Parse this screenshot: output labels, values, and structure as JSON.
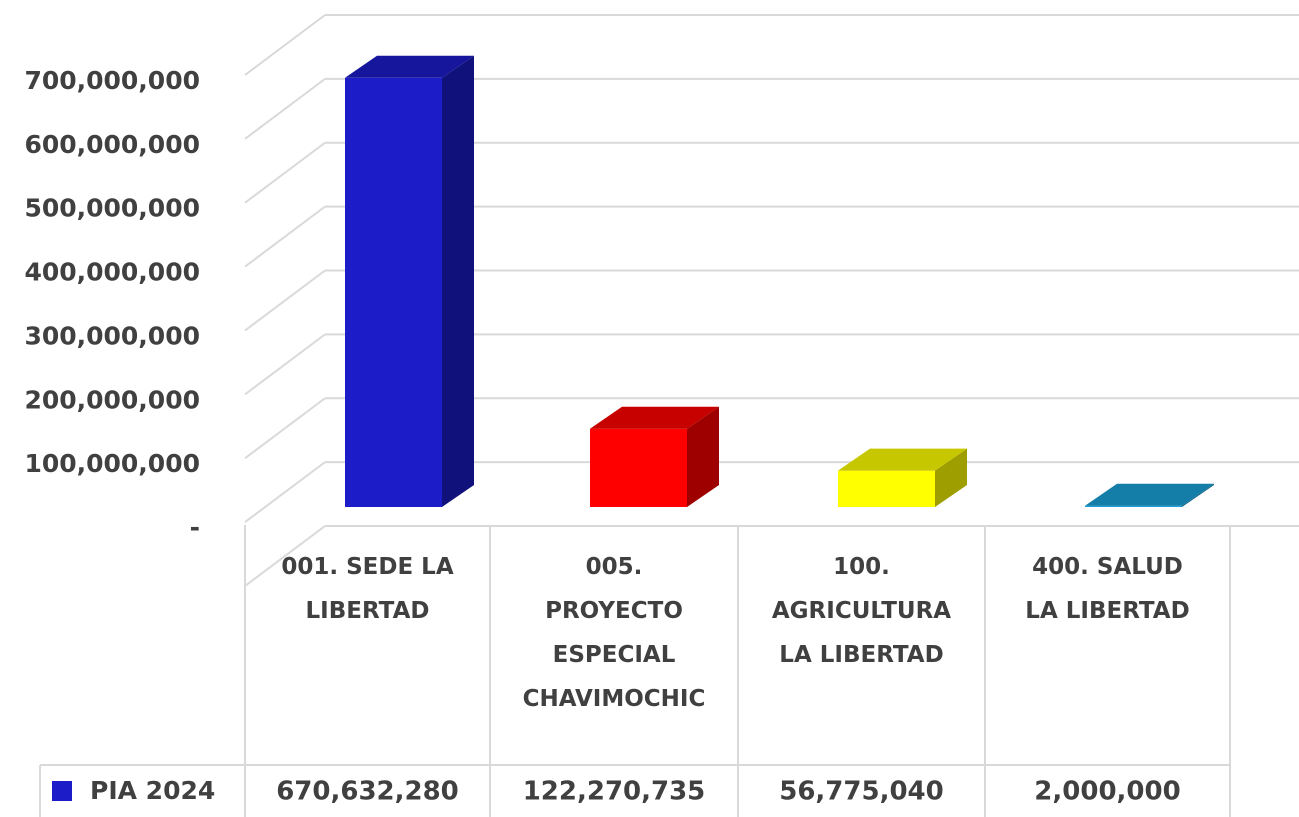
{
  "chart_data": {
    "type": "bar3d",
    "categories": [
      "001. SEDE LA LIBERTAD",
      "005. PROYECTO ESPECIAL CHAVIMOCHIC",
      "100. AGRICULTURA LA LIBERTAD",
      "400. SALUD LA LIBERTAD"
    ],
    "series": [
      {
        "name": "PIA 2024",
        "color": "#1c1cc8",
        "colors": [
          "#1c1cc8",
          "#ff0000",
          "#ffff00",
          "#1aa0d8"
        ],
        "values": [
          670632280,
          122270735,
          56775040,
          2000000
        ],
        "value_labels": [
          "670,632,280",
          "122,270,735",
          "56,775,040",
          "2,000,000"
        ]
      }
    ],
    "ylim": [
      0,
      800000000
    ],
    "yticks": [
      {
        "value": 0,
        "label": "-"
      },
      {
        "value": 100000000,
        "label": "100,000,000"
      },
      {
        "value": 200000000,
        "label": "200,000,000"
      },
      {
        "value": 300000000,
        "label": "300,000,000"
      },
      {
        "value": 400000000,
        "label": "400,000,000"
      },
      {
        "value": 500000000,
        "label": "500,000,000"
      },
      {
        "value": 600000000,
        "label": "600,000,000"
      },
      {
        "value": 700000000,
        "label": "700,000,000"
      }
    ],
    "grid": true,
    "data_table": true
  }
}
